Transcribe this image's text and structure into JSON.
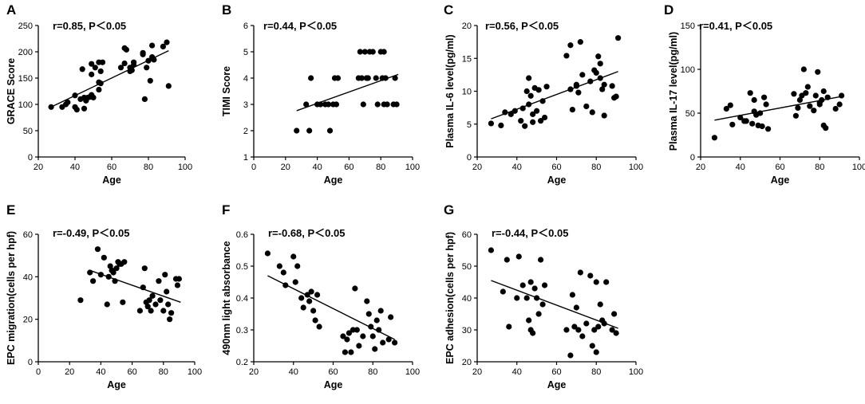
{
  "figure_title": "",
  "chart_data": [
    {
      "panel": "A",
      "type": "scatter",
      "stat": "r=0.85, P＜0.05",
      "xlabel": "Age",
      "ylabel": "GRACE Score",
      "xlim": [
        20,
        100
      ],
      "ylim": [
        0,
        250
      ],
      "xticks": [
        20,
        40,
        60,
        80,
        100
      ],
      "yticks": [
        0,
        50,
        100,
        150,
        200,
        250
      ],
      "points": [
        [
          27,
          95
        ],
        [
          33,
          95
        ],
        [
          35,
          100
        ],
        [
          36,
          104
        ],
        [
          40,
          95
        ],
        [
          40,
          117
        ],
        [
          41,
          90
        ],
        [
          43,
          110
        ],
        [
          44,
          167
        ],
        [
          45,
          113
        ],
        [
          45,
          92
        ],
        [
          46,
          107
        ],
        [
          47,
          113
        ],
        [
          48,
          114
        ],
        [
          49,
          118
        ],
        [
          49,
          157
        ],
        [
          49,
          177
        ],
        [
          50,
          113
        ],
        [
          51,
          170
        ],
        [
          53,
          180
        ],
        [
          53,
          128
        ],
        [
          53,
          142
        ],
        [
          54,
          140
        ],
        [
          54,
          163
        ],
        [
          55,
          180
        ],
        [
          65,
          170
        ],
        [
          67,
          207
        ],
        [
          67,
          178
        ],
        [
          68,
          204
        ],
        [
          70,
          163
        ],
        [
          70,
          170
        ],
        [
          71,
          165
        ],
        [
          72,
          175
        ],
        [
          72,
          180
        ],
        [
          77,
          195
        ],
        [
          77,
          198
        ],
        [
          78,
          110
        ],
        [
          79,
          170
        ],
        [
          80,
          183
        ],
        [
          81,
          145
        ],
        [
          82,
          190
        ],
        [
          82,
          212
        ],
        [
          83,
          185
        ],
        [
          88,
          210
        ],
        [
          90,
          218
        ],
        [
          91,
          135
        ]
      ],
      "fit": [
        [
          27,
          95
        ],
        [
          91,
          202
        ]
      ]
    },
    {
      "panel": "B",
      "type": "scatter",
      "stat": "r=0.44,   P＜0.05",
      "xlabel": "Age",
      "ylabel": "TIMI Score",
      "xlim": [
        0,
        100
      ],
      "ylim": [
        1,
        6
      ],
      "xticks": [
        0,
        20,
        40,
        60,
        80,
        100
      ],
      "yticks": [
        1,
        2,
        3,
        4,
        5,
        6
      ],
      "points": [
        [
          27,
          2
        ],
        [
          33,
          3
        ],
        [
          35,
          2
        ],
        [
          36,
          4
        ],
        [
          40,
          3
        ],
        [
          42,
          3
        ],
        [
          45,
          3
        ],
        [
          47,
          3
        ],
        [
          48,
          2
        ],
        [
          50,
          3
        ],
        [
          51,
          4
        ],
        [
          52,
          3
        ],
        [
          53,
          4
        ],
        [
          66,
          4
        ],
        [
          67,
          5
        ],
        [
          68,
          4
        ],
        [
          69,
          3
        ],
        [
          70,
          5
        ],
        [
          71,
          4
        ],
        [
          72,
          4
        ],
        [
          73,
          5
        ],
        [
          75,
          5
        ],
        [
          77,
          4
        ],
        [
          78,
          3
        ],
        [
          80,
          5
        ],
        [
          81,
          4
        ],
        [
          82,
          5
        ],
        [
          82,
          3
        ],
        [
          83,
          4
        ],
        [
          84,
          3
        ],
        [
          88,
          3
        ],
        [
          89,
          4
        ],
        [
          90,
          3
        ]
      ],
      "fit": [
        [
          27,
          2.76
        ],
        [
          91,
          4.14
        ]
      ]
    },
    {
      "panel": "C",
      "type": "scatter",
      "stat": "r=0.56, P＜0.05",
      "xlabel": "Age",
      "ylabel": "Plasma IL-6 level(pg/ml)",
      "xlim": [
        20,
        100
      ],
      "ylim": [
        0,
        20
      ],
      "xticks": [
        20,
        40,
        60,
        80,
        100
      ],
      "yticks": [
        0,
        5,
        10,
        15,
        20
      ],
      "points": [
        [
          27,
          5.1
        ],
        [
          32,
          4.8
        ],
        [
          34,
          6.8
        ],
        [
          37,
          6.5
        ],
        [
          39,
          7.0
        ],
        [
          42,
          5.5
        ],
        [
          43,
          7.4
        ],
        [
          44,
          4.7
        ],
        [
          45,
          10.0
        ],
        [
          46,
          12.0
        ],
        [
          46,
          8.0
        ],
        [
          47,
          9.3
        ],
        [
          48,
          6.5
        ],
        [
          48,
          5.3
        ],
        [
          49,
          10.5
        ],
        [
          50,
          7.0
        ],
        [
          51,
          10.2
        ],
        [
          52,
          5.5
        ],
        [
          53,
          8.5
        ],
        [
          54,
          6.0
        ],
        [
          55,
          10.7
        ],
        [
          65,
          15.4
        ],
        [
          67,
          17.0
        ],
        [
          67,
          10.3
        ],
        [
          68,
          7.2
        ],
        [
          70,
          11.0
        ],
        [
          70,
          10.8
        ],
        [
          71,
          9.8
        ],
        [
          72,
          17.5
        ],
        [
          73,
          12.5
        ],
        [
          75,
          7.7
        ],
        [
          77,
          11.5
        ],
        [
          78,
          6.8
        ],
        [
          79,
          13.2
        ],
        [
          80,
          12.8
        ],
        [
          81,
          15.3
        ],
        [
          82,
          12.0
        ],
        [
          82,
          14.2
        ],
        [
          83,
          10.3
        ],
        [
          84,
          11.0
        ],
        [
          84,
          6.3
        ],
        [
          88,
          10.8
        ],
        [
          89,
          9.0
        ],
        [
          90,
          9.2
        ],
        [
          91,
          18.1
        ]
      ],
      "fit": [
        [
          27,
          5.8
        ],
        [
          91,
          13.0
        ]
      ]
    },
    {
      "panel": "D",
      "type": "scatter",
      "stat": "r=0.41,   P＜0.05",
      "xlabel": "Age",
      "ylabel": "Plasma IL-17 level(pg/ml)",
      "xlim": [
        20,
        100
      ],
      "ylim": [
        0,
        150
      ],
      "xticks": [
        20,
        40,
        60,
        80,
        100
      ],
      "yticks": [
        0,
        50,
        100,
        150
      ],
      "points": [
        [
          27,
          22
        ],
        [
          33,
          55
        ],
        [
          35,
          59
        ],
        [
          36,
          37
        ],
        [
          40,
          45
        ],
        [
          42,
          41
        ],
        [
          43,
          41
        ],
        [
          45,
          73
        ],
        [
          46,
          38
        ],
        [
          47,
          65
        ],
        [
          47,
          52
        ],
        [
          48,
          48
        ],
        [
          49,
          36
        ],
        [
          50,
          50
        ],
        [
          51,
          35
        ],
        [
          52,
          68
        ],
        [
          53,
          60
        ],
        [
          54,
          32
        ],
        [
          67,
          72
        ],
        [
          68,
          47
        ],
        [
          69,
          56
        ],
        [
          70,
          65
        ],
        [
          71,
          70
        ],
        [
          72,
          100
        ],
        [
          73,
          73
        ],
        [
          74,
          80
        ],
        [
          75,
          58
        ],
        [
          77,
          53
        ],
        [
          78,
          70
        ],
        [
          79,
          97
        ],
        [
          80,
          62
        ],
        [
          80,
          60
        ],
        [
          81,
          65
        ],
        [
          82,
          75
        ],
        [
          82,
          36
        ],
        [
          83,
          33
        ],
        [
          84,
          68
        ],
        [
          88,
          55
        ],
        [
          90,
          60
        ],
        [
          91,
          70
        ]
      ],
      "fit": [
        [
          27,
          42
        ],
        [
          91,
          69
        ]
      ]
    },
    {
      "panel": "E",
      "type": "scatter",
      "stat": "r=-0.49,   P＜0.05",
      "xlabel": "Age",
      "ylabel": "EPC migration(cells per hpf)",
      "xlim": [
        0,
        100
      ],
      "ylim": [
        0,
        60
      ],
      "xticks": [
        0,
        20,
        40,
        60,
        80,
        100
      ],
      "yticks": [
        0,
        20,
        40,
        60
      ],
      "points": [
        [
          27,
          29
        ],
        [
          33,
          42
        ],
        [
          35,
          38
        ],
        [
          38,
          53
        ],
        [
          40,
          41
        ],
        [
          42,
          49
        ],
        [
          44,
          27
        ],
        [
          45,
          40
        ],
        [
          46,
          45
        ],
        [
          47,
          43
        ],
        [
          48,
          42
        ],
        [
          49,
          38
        ],
        [
          50,
          44
        ],
        [
          51,
          47
        ],
        [
          52,
          46
        ],
        [
          53,
          46
        ],
        [
          54,
          28
        ],
        [
          55,
          47
        ],
        [
          65,
          24
        ],
        [
          67,
          35
        ],
        [
          68,
          44
        ],
        [
          69,
          28
        ],
        [
          70,
          26
        ],
        [
          71,
          29
        ],
        [
          72,
          24
        ],
        [
          73,
          31
        ],
        [
          75,
          27
        ],
        [
          77,
          38
        ],
        [
          78,
          29
        ],
        [
          80,
          24
        ],
        [
          81,
          41
        ],
        [
          82,
          33
        ],
        [
          83,
          27
        ],
        [
          84,
          20
        ],
        [
          85,
          23
        ],
        [
          88,
          39
        ],
        [
          89,
          36
        ],
        [
          90,
          39
        ]
      ],
      "fit": [
        [
          33,
          43
        ],
        [
          91,
          28
        ]
      ]
    },
    {
      "panel": "F",
      "type": "scatter",
      "stat": "r=-0.68,   P＜0.05",
      "xlabel": "Age",
      "ylabel": "490nm light absorbance",
      "xlim": [
        20,
        100
      ],
      "ylim": [
        0.2,
        0.6
      ],
      "xticks": [
        20,
        40,
        60,
        80,
        100
      ],
      "yticks": [
        0.2,
        0.3,
        0.4,
        0.5,
        0.6
      ],
      "points": [
        [
          27,
          0.54
        ],
        [
          33,
          0.5
        ],
        [
          35,
          0.48
        ],
        [
          36,
          0.44
        ],
        [
          40,
          0.53
        ],
        [
          41,
          0.45
        ],
        [
          42,
          0.5
        ],
        [
          44,
          0.4
        ],
        [
          45,
          0.37
        ],
        [
          47,
          0.41
        ],
        [
          48,
          0.39
        ],
        [
          49,
          0.42
        ],
        [
          50,
          0.36
        ],
        [
          51,
          0.33
        ],
        [
          52,
          0.41
        ],
        [
          53,
          0.31
        ],
        [
          65,
          0.28
        ],
        [
          66,
          0.23
        ],
        [
          67,
          0.27
        ],
        [
          68,
          0.29
        ],
        [
          69,
          0.23
        ],
        [
          70,
          0.3
        ],
        [
          71,
          0.43
        ],
        [
          72,
          0.3
        ],
        [
          73,
          0.25
        ],
        [
          75,
          0.28
        ],
        [
          77,
          0.39
        ],
        [
          78,
          0.35
        ],
        [
          79,
          0.31
        ],
        [
          80,
          0.28
        ],
        [
          81,
          0.24
        ],
        [
          82,
          0.33
        ],
        [
          83,
          0.3
        ],
        [
          84,
          0.36
        ],
        [
          85,
          0.26
        ],
        [
          88,
          0.27
        ],
        [
          89,
          0.34
        ],
        [
          91,
          0.26
        ]
      ],
      "fit": [
        [
          27,
          0.47
        ],
        [
          91,
          0.27
        ]
      ]
    },
    {
      "panel": "G",
      "type": "scatter",
      "stat": "r=-0.44,   P＜0.05",
      "xlabel": "Age",
      "ylabel": "EPC adhesion(cells per hpf)",
      "xlim": [
        20,
        100
      ],
      "ylim": [
        20,
        60
      ],
      "xticks": [
        20,
        40,
        60,
        80,
        100
      ],
      "yticks": [
        20,
        30,
        40,
        50,
        60
      ],
      "points": [
        [
          27,
          55
        ],
        [
          33,
          42
        ],
        [
          35,
          52
        ],
        [
          36,
          31
        ],
        [
          40,
          40
        ],
        [
          41,
          53
        ],
        [
          43,
          44
        ],
        [
          45,
          40
        ],
        [
          46,
          33
        ],
        [
          47,
          30
        ],
        [
          47,
          45
        ],
        [
          48,
          29
        ],
        [
          49,
          43
        ],
        [
          50,
          40
        ],
        [
          51,
          35
        ],
        [
          52,
          52
        ],
        [
          53,
          38
        ],
        [
          54,
          44
        ],
        [
          65,
          30
        ],
        [
          67,
          22
        ],
        [
          68,
          41
        ],
        [
          69,
          31
        ],
        [
          70,
          37
        ],
        [
          71,
          30
        ],
        [
          72,
          48
        ],
        [
          73,
          28
        ],
        [
          75,
          32
        ],
        [
          77,
          47
        ],
        [
          78,
          25
        ],
        [
          79,
          30
        ],
        [
          80,
          45
        ],
        [
          80,
          23
        ],
        [
          81,
          31
        ],
        [
          82,
          38
        ],
        [
          83,
          33
        ],
        [
          84,
          32
        ],
        [
          85,
          45
        ],
        [
          88,
          30
        ],
        [
          89,
          35
        ],
        [
          90,
          29
        ]
      ],
      "fit": [
        [
          27,
          45.5
        ],
        [
          91,
          30.5
        ]
      ]
    }
  ]
}
